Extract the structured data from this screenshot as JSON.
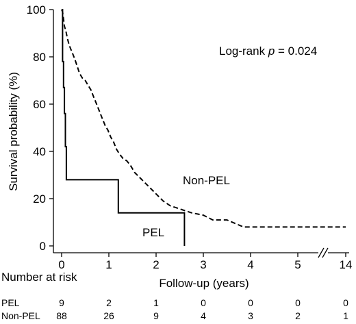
{
  "chart_data": {
    "type": "line",
    "title": "",
    "xlabel": "Follow-up (years)",
    "ylabel": "Survival probability (%)",
    "ylim": [
      0,
      100
    ],
    "xlim": [
      0,
      14
    ],
    "axis_break": "between 5 and 14",
    "x_ticks": [
      0,
      1,
      2,
      3,
      4,
      5,
      14
    ],
    "x_tick_labels": [
      "0",
      "1",
      "2",
      "3",
      "4",
      "5",
      "14"
    ],
    "y_ticks": [
      0,
      20,
      40,
      60,
      80,
      100
    ],
    "y_tick_labels": [
      "0",
      "20",
      "40",
      "60",
      "80",
      "100"
    ],
    "grid": false,
    "annotation": {
      "prefix": "Log-rank ",
      "p": "p",
      "suffix": " = 0.024"
    },
    "series": [
      {
        "name": "PEL",
        "style": "solid",
        "color": "#000000",
        "points": [
          [
            0,
            100
          ],
          [
            0.02,
            100
          ],
          [
            0.02,
            78
          ],
          [
            0.04,
            78
          ],
          [
            0.04,
            67
          ],
          [
            0.06,
            67
          ],
          [
            0.06,
            56
          ],
          [
            0.08,
            56
          ],
          [
            0.08,
            42
          ],
          [
            0.1,
            42
          ],
          [
            0.1,
            28
          ],
          [
            1.2,
            28
          ],
          [
            1.2,
            14
          ],
          [
            2.6,
            14
          ],
          [
            2.6,
            0
          ]
        ]
      },
      {
        "name": "Non-PEL",
        "style": "dashed",
        "color": "#000000",
        "points": [
          [
            0,
            100
          ],
          [
            0.02,
            99
          ],
          [
            0.04,
            96
          ],
          [
            0.06,
            93
          ],
          [
            0.09,
            91
          ],
          [
            0.12,
            88
          ],
          [
            0.16,
            85
          ],
          [
            0.2,
            83
          ],
          [
            0.24,
            81
          ],
          [
            0.28,
            79
          ],
          [
            0.33,
            76
          ],
          [
            0.38,
            73
          ],
          [
            0.44,
            71
          ],
          [
            0.5,
            70
          ],
          [
            0.56,
            68
          ],
          [
            0.62,
            66
          ],
          [
            0.68,
            63
          ],
          [
            0.74,
            60
          ],
          [
            0.8,
            57
          ],
          [
            0.86,
            54
          ],
          [
            0.92,
            51
          ],
          [
            0.98,
            49
          ],
          [
            1.04,
            46
          ],
          [
            1.1,
            44
          ],
          [
            1.16,
            41
          ],
          [
            1.22,
            39
          ],
          [
            1.3,
            37
          ],
          [
            1.38,
            36
          ],
          [
            1.46,
            34
          ],
          [
            1.55,
            31
          ],
          [
            1.65,
            29
          ],
          [
            1.75,
            27
          ],
          [
            1.85,
            25
          ],
          [
            1.95,
            23
          ],
          [
            2.05,
            21
          ],
          [
            2.15,
            19
          ],
          [
            2.3,
            17
          ],
          [
            2.45,
            16
          ],
          [
            2.6,
            15
          ],
          [
            2.75,
            14
          ],
          [
            3.0,
            13
          ],
          [
            3.2,
            11
          ],
          [
            3.5,
            11
          ],
          [
            3.85,
            8
          ],
          [
            14,
            8
          ]
        ]
      }
    ],
    "labels_on_plot": {
      "pel": "PEL",
      "non_pel": "Non-PEL"
    },
    "risk_table": {
      "title": "Number at risk",
      "times": [
        0,
        1,
        2,
        3,
        4,
        5,
        14
      ],
      "rows": [
        {
          "name": "PEL",
          "values": [
            "9",
            "2",
            "1",
            "0",
            "0",
            "0",
            "0"
          ]
        },
        {
          "name": "Non-PEL",
          "values": [
            "88",
            "26",
            "9",
            "4",
            "3",
            "2",
            "1"
          ]
        }
      ]
    }
  }
}
